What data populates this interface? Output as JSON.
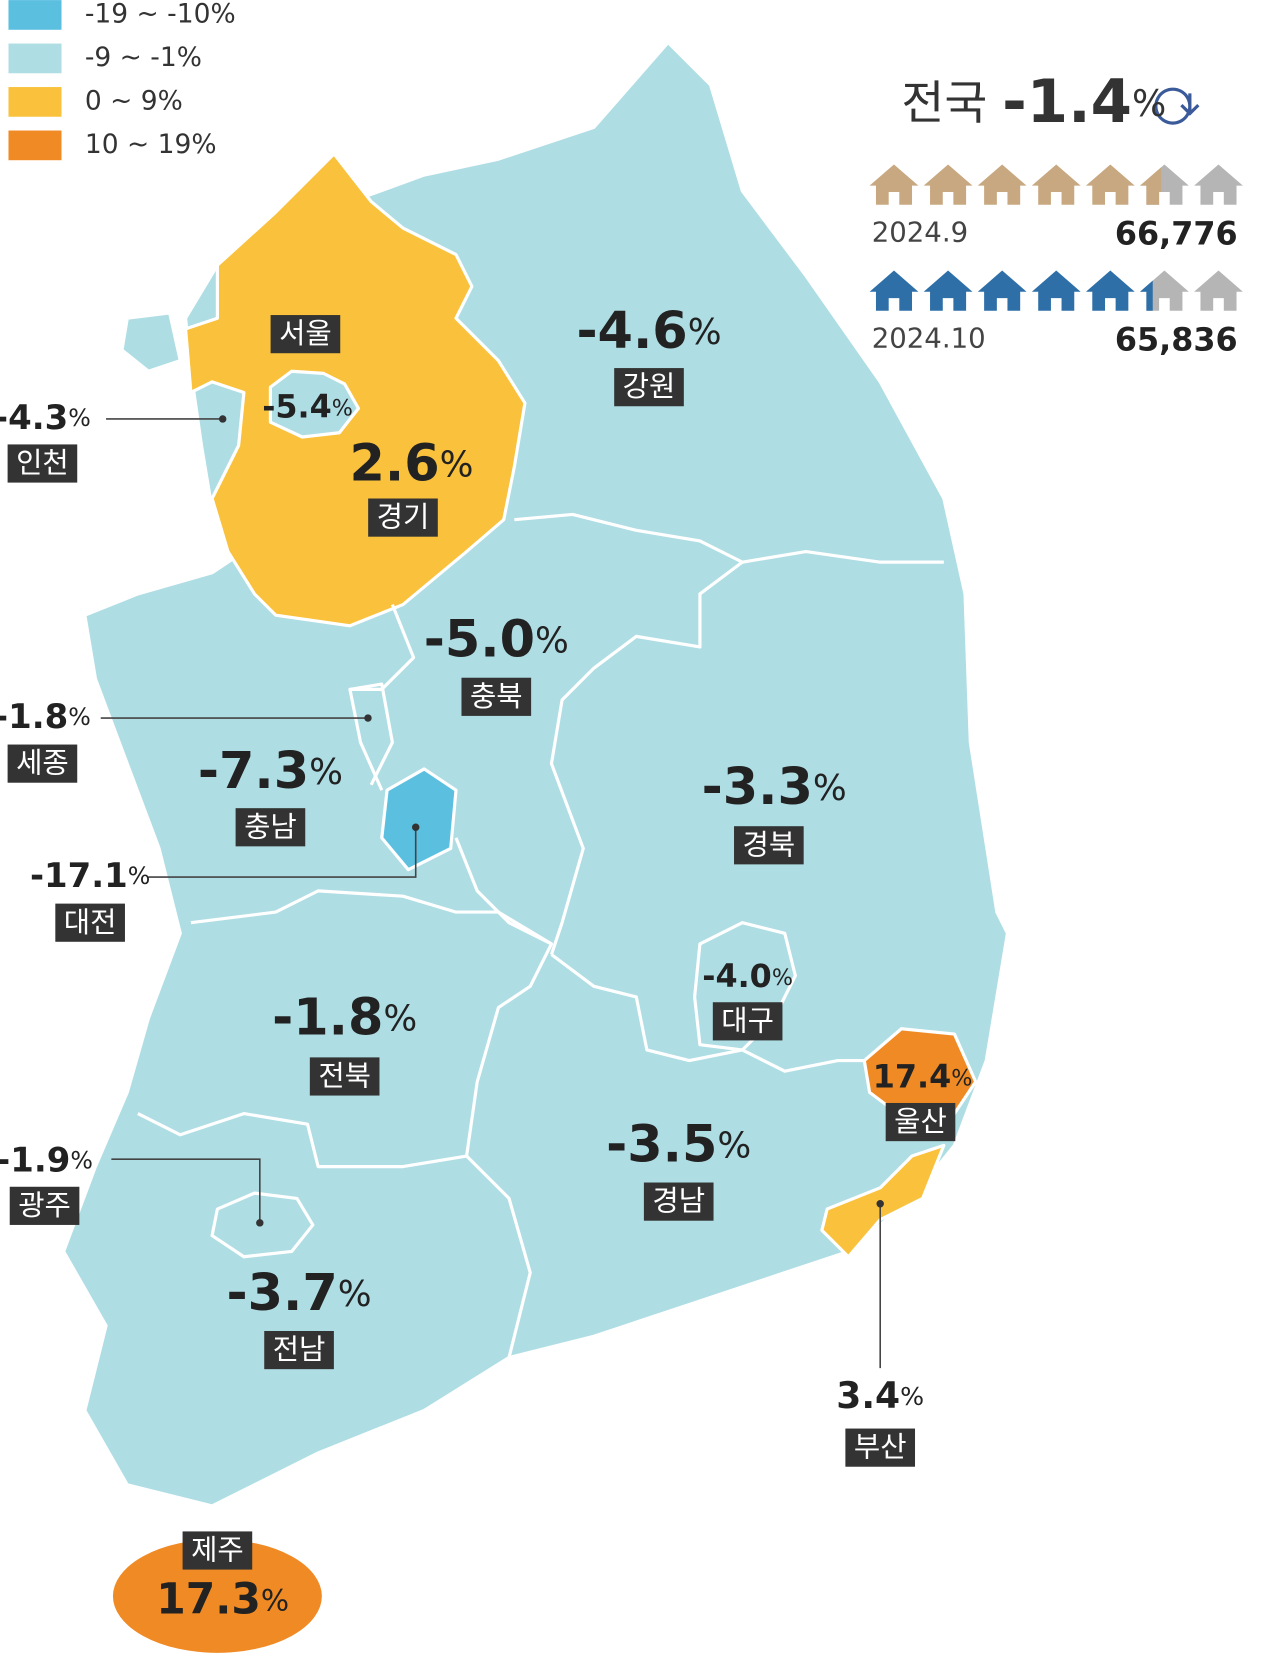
{
  "legend": [
    {
      "label": "-19 ~ -10%",
      "color": "#5bbfe0"
    },
    {
      "label": "-9 ~ -1%",
      "color": "#aedde4"
    },
    {
      "label": "0 ~ 9%",
      "color": "#f9c13c"
    },
    {
      "label": "10 ~ 19%",
      "color": "#f08a24"
    }
  ],
  "unit": "%",
  "national": {
    "name": "전국",
    "value": -1.4
  },
  "comparison": [
    {
      "period": "2024.9",
      "count": "66,776",
      "color": "#c8a880"
    },
    {
      "period": "2024.10",
      "count": "65,836",
      "color": "#2e6fa8"
    }
  ],
  "regions": [
    {
      "name": "서울",
      "value": -5.4,
      "color": "#aedde4"
    },
    {
      "name": "인천",
      "value": -4.3,
      "color": "#aedde4"
    },
    {
      "name": "경기",
      "value": 2.6,
      "color": "#f9c13c"
    },
    {
      "name": "강원",
      "value": -4.6,
      "color": "#aedde4"
    },
    {
      "name": "충북",
      "value": -5,
      "value_label": "-5.0",
      "color": "#aedde4"
    },
    {
      "name": "세종",
      "value": -1.8,
      "color": "#aedde4"
    },
    {
      "name": "충남",
      "value": -7.3,
      "color": "#aedde4"
    },
    {
      "name": "대전",
      "value": -17.1,
      "color": "#5bbfe0"
    },
    {
      "name": "경북",
      "value": -3.3,
      "color": "#aedde4"
    },
    {
      "name": "대구",
      "value": -4,
      "value_label": "-4.0",
      "color": "#aedde4"
    },
    {
      "name": "전북",
      "value": -1.8,
      "color": "#aedde4"
    },
    {
      "name": "광주",
      "value": -1.9,
      "color": "#aedde4"
    },
    {
      "name": "울산",
      "value": 17.4,
      "color": "#f08a24"
    },
    {
      "name": "경남",
      "value": -3.5,
      "color": "#aedde4"
    },
    {
      "name": "부산",
      "value": 3.4,
      "color": "#f9c13c"
    },
    {
      "name": "전남",
      "value": -3.7,
      "color": "#aedde4"
    },
    {
      "name": "제주",
      "value": 17.3,
      "color": "#f08a24"
    }
  ]
}
